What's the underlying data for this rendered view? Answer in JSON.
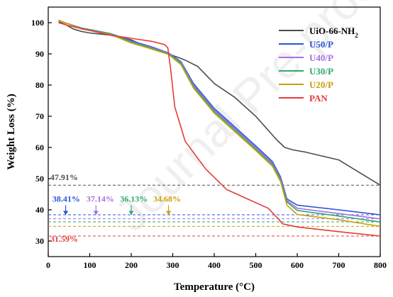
{
  "chart_data": {
    "type": "line",
    "xlabel": "Temperature (°C)",
    "ylabel": "Weight Loss (%)",
    "xlim": [
      0,
      800
    ],
    "ylim": [
      25,
      105
    ],
    "x_ticks": [
      0,
      100,
      200,
      300,
      400,
      500,
      600,
      700,
      800
    ],
    "y_ticks": [
      30,
      40,
      50,
      60,
      70,
      80,
      90,
      100
    ],
    "grid": false,
    "legend_position": "top-right",
    "series": [
      {
        "name": "UiO-66-NH",
        "sub": "2",
        "color": "#4d4d4d",
        "x": [
          25,
          40,
          60,
          80,
          100,
          150,
          200,
          250,
          300,
          330,
          360,
          400,
          450,
          500,
          530,
          550,
          570,
          590,
          620,
          700,
          800
        ],
        "y": [
          100.3,
          99.5,
          98.0,
          97.2,
          96.7,
          96.0,
          94.5,
          91.5,
          89.5,
          88.0,
          86.0,
          80.5,
          76.0,
          70.0,
          65.5,
          62.5,
          60.0,
          59.2,
          58.5,
          56.0,
          47.9
        ]
      },
      {
        "name": "U50/P",
        "color": "#2a55d6",
        "x": [
          25,
          40,
          80,
          150,
          200,
          250,
          290,
          320,
          350,
          400,
          450,
          500,
          540,
          560,
          575,
          600,
          700,
          800
        ],
        "y": [
          100.8,
          100.0,
          98.3,
          96.5,
          94.2,
          92.2,
          90.3,
          87.5,
          80.5,
          72.5,
          66.5,
          60.5,
          55.5,
          50.5,
          43.5,
          41.5,
          40.0,
          38.4
        ]
      },
      {
        "name": "U40/P",
        "color": "#a86ee0",
        "x": [
          25,
          40,
          80,
          150,
          200,
          250,
          290,
          320,
          350,
          400,
          450,
          500,
          540,
          560,
          575,
          600,
          700,
          800
        ],
        "y": [
          100.8,
          100.0,
          98.2,
          96.4,
          94.0,
          92.0,
          90.2,
          87.3,
          80.0,
          72.0,
          66.0,
          60.0,
          55.0,
          50.0,
          43.0,
          40.5,
          38.8,
          37.1
        ]
      },
      {
        "name": "U30/P",
        "color": "#2fa86a",
        "x": [
          25,
          40,
          80,
          150,
          200,
          250,
          290,
          320,
          350,
          400,
          450,
          500,
          540,
          560,
          575,
          600,
          700,
          800
        ],
        "y": [
          100.8,
          100.0,
          98.2,
          96.4,
          93.8,
          91.8,
          90.0,
          87.0,
          79.5,
          71.5,
          65.5,
          59.5,
          54.5,
          49.5,
          42.5,
          39.8,
          38.0,
          36.1
        ]
      },
      {
        "name": "U20/P",
        "color": "#c9a00a",
        "x": [
          25,
          40,
          80,
          150,
          200,
          250,
          290,
          320,
          350,
          400,
          450,
          500,
          540,
          560,
          575,
          600,
          700,
          800
        ],
        "y": [
          100.8,
          100.0,
          98.0,
          96.2,
          93.5,
          91.5,
          89.8,
          86.5,
          79.0,
          71.0,
          65.0,
          59.0,
          54.0,
          49.0,
          41.5,
          38.5,
          36.8,
          34.7
        ]
      },
      {
        "name": "PAN",
        "color": "#e43b3b",
        "x": [
          25,
          50,
          100,
          150,
          200,
          250,
          280,
          288,
          295,
          305,
          330,
          380,
          430,
          480,
          530,
          555,
          565,
          600,
          700,
          800
        ],
        "y": [
          100.0,
          99.0,
          97.5,
          96.0,
          95.0,
          94.0,
          93.0,
          92.0,
          85.0,
          73.0,
          62.0,
          53.0,
          46.5,
          43.5,
          40.5,
          37.0,
          35.5,
          34.5,
          33.0,
          31.6
        ]
      }
    ],
    "reference_lines": [
      {
        "y": 47.91,
        "color": "#4d4d4d"
      },
      {
        "y": 38.41,
        "color": "#2a55d6"
      },
      {
        "y": 37.14,
        "color": "#a86ee0"
      },
      {
        "y": 36.13,
        "color": "#2fa86a"
      },
      {
        "y": 34.68,
        "color": "#c9a00a"
      },
      {
        "y": 31.59,
        "color": "#e43b3b"
      }
    ],
    "annotations": [
      {
        "text": "47.91%",
        "color": "#4d4d4d",
        "x": 5,
        "y": 49.5,
        "arrow": false
      },
      {
        "text": "38.41%",
        "color": "#2a55d6",
        "x": 10,
        "y": 42.6,
        "arrow_x": 42
      },
      {
        "text": "37.14%",
        "color": "#a86ee0",
        "x": 92,
        "y": 42.6,
        "arrow_x": 115
      },
      {
        "text": "36.13%",
        "color": "#2fa86a",
        "x": 173,
        "y": 42.6,
        "arrow_x": 200
      },
      {
        "text": "34.68%",
        "color": "#c9a00a",
        "x": 253,
        "y": 42.6,
        "arrow_x": 290
      },
      {
        "text": "31.59%",
        "color": "#e43b3b",
        "x": 5,
        "y": 29.8,
        "arrow": false
      }
    ]
  },
  "watermark": "Journal Pre-proof"
}
